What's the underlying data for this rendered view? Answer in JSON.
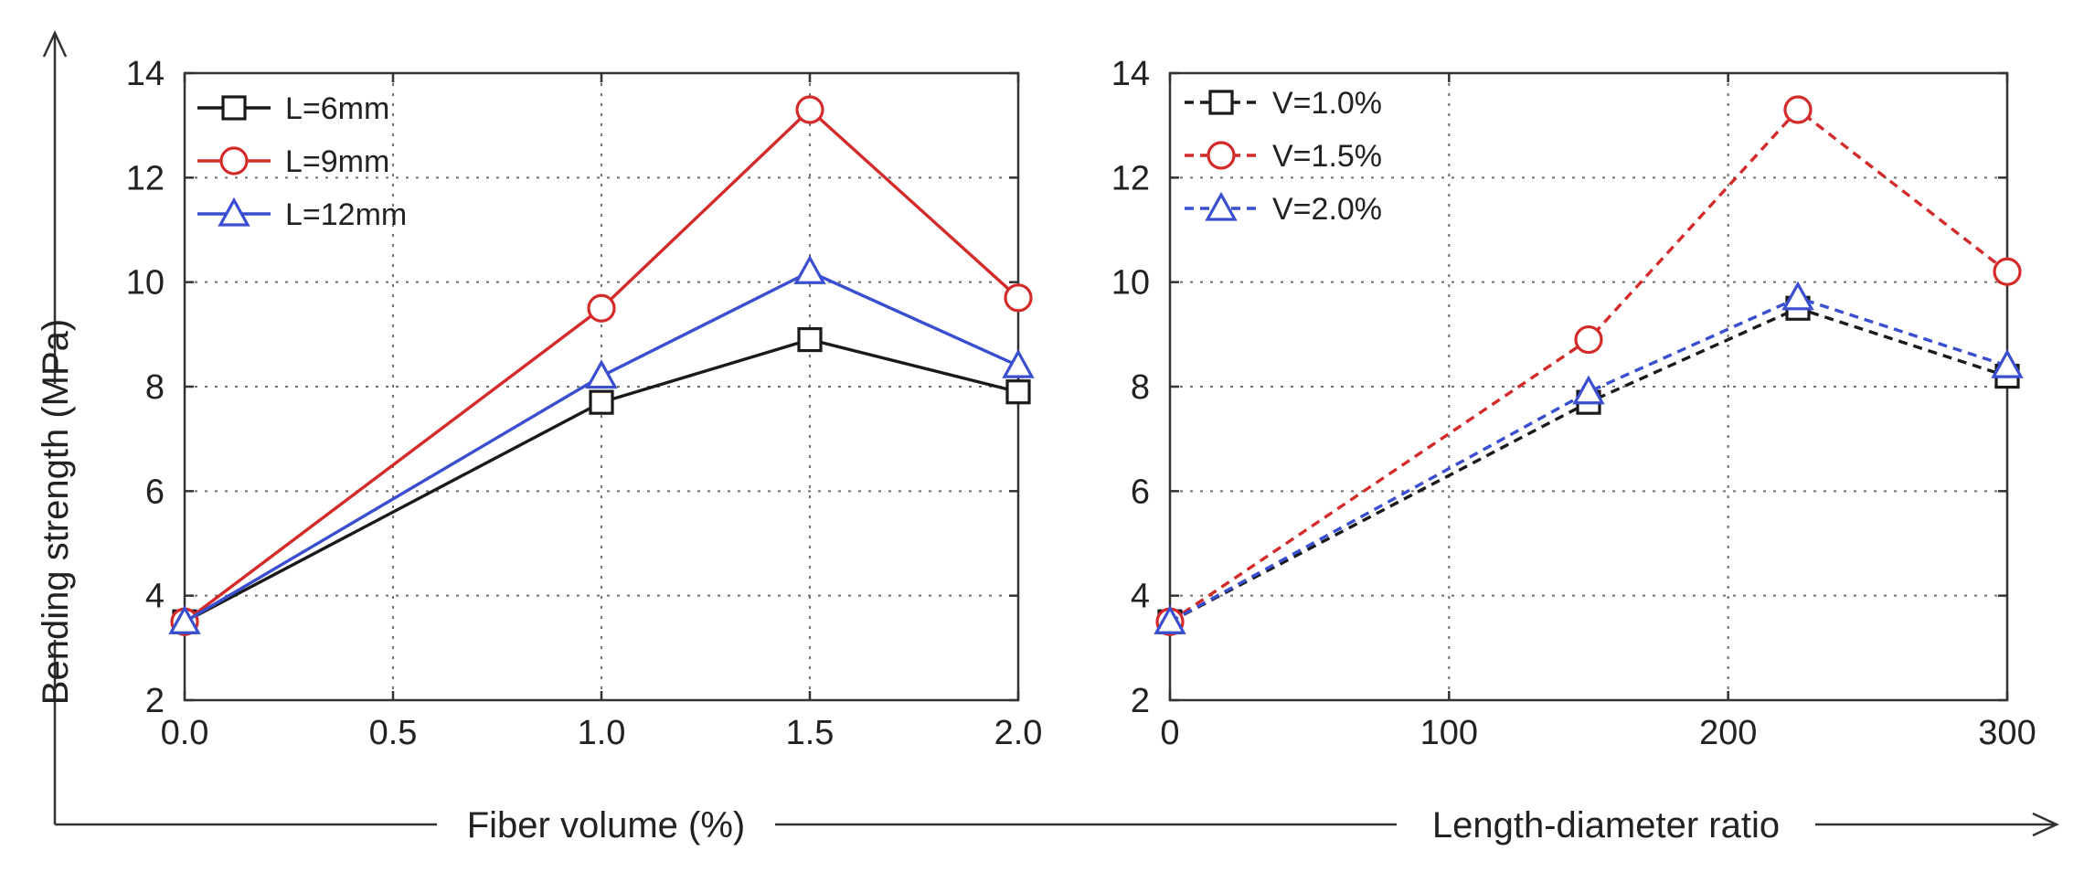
{
  "figure": {
    "y_axis_title": "Bending strength (MPa)",
    "x_axis_title_left": "Fiber volume (%)",
    "x_axis_title_right": "Length-diameter ratio"
  },
  "chart_data": [
    {
      "type": "line",
      "xlim": [
        0,
        2
      ],
      "ylim": [
        2,
        14
      ],
      "x_ticks": [
        "0.0",
        "0.5",
        "1.0",
        "1.5",
        "2.0"
      ],
      "y_ticks": [
        "2",
        "4",
        "6",
        "8",
        "10",
        "12",
        "14"
      ],
      "x_tick_values": [
        0,
        0.5,
        1.0,
        1.5,
        2.0
      ],
      "y_tick_values": [
        2,
        4,
        6,
        8,
        10,
        12,
        14
      ],
      "xlabel": "Fiber volume (%)",
      "ylabel": "Bending strength (MPa)",
      "grid": true,
      "legend_position": "top-left",
      "series": [
        {
          "name": "L=6mm",
          "color": "#1a1a1a",
          "marker": "square",
          "line": "solid",
          "x": [
            0,
            1.0,
            1.5,
            2.0
          ],
          "values": [
            3.5,
            7.7,
            8.9,
            7.9
          ]
        },
        {
          "name": "L=9mm",
          "color": "#d42a2a",
          "marker": "circle",
          "line": "solid",
          "x": [
            0,
            1.0,
            1.5,
            2.0
          ],
          "values": [
            3.5,
            9.5,
            13.3,
            9.7
          ]
        },
        {
          "name": "L=12mm",
          "color": "#3a4fd0",
          "marker": "triangle",
          "line": "solid",
          "x": [
            0,
            1.0,
            1.5,
            2.0
          ],
          "values": [
            3.5,
            8.2,
            10.2,
            8.4
          ]
        }
      ]
    },
    {
      "type": "line",
      "xlim": [
        0,
        300
      ],
      "ylim": [
        2,
        14
      ],
      "x_ticks": [
        "0",
        "100",
        "200",
        "300"
      ],
      "y_ticks": [
        "2",
        "4",
        "6",
        "8",
        "10",
        "12",
        "14"
      ],
      "x_tick_values": [
        0,
        100,
        200,
        300
      ],
      "y_tick_values": [
        2,
        4,
        6,
        8,
        10,
        12,
        14
      ],
      "xlabel": "Length-diameter ratio",
      "ylabel": "Bending strength (MPa)",
      "grid": true,
      "legend_position": "top-left",
      "series": [
        {
          "name": "V=1.0%",
          "color": "#1a1a1a",
          "marker": "square",
          "line": "dashed",
          "x": [
            0,
            150,
            225,
            300
          ],
          "values": [
            3.5,
            7.7,
            9.5,
            8.2
          ]
        },
        {
          "name": "V=1.5%",
          "color": "#d42a2a",
          "marker": "circle",
          "line": "dashed",
          "x": [
            0,
            150,
            225,
            300
          ],
          "values": [
            3.5,
            8.9,
            13.3,
            10.2
          ]
        },
        {
          "name": "V=2.0%",
          "color": "#3a4fd0",
          "marker": "triangle",
          "line": "dashed",
          "x": [
            0,
            150,
            225,
            300
          ],
          "values": [
            3.5,
            7.9,
            9.7,
            8.4
          ]
        }
      ]
    }
  ]
}
